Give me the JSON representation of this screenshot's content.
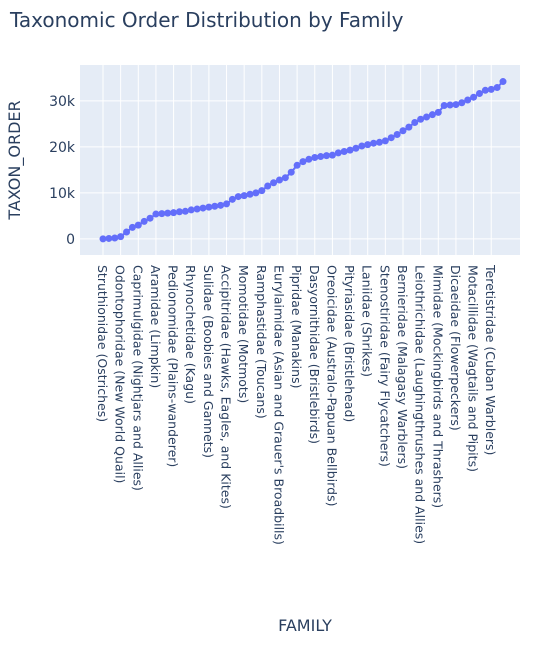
{
  "chart_data": {
    "type": "line",
    "title": "Taxonomic Order Distribution by Family",
    "x_label": "FAMILY",
    "y_label": "TAXON_ORDER",
    "categories": [
      "Struthionidae (Ostriches)",
      null,
      null,
      "Odontophoridae (New World Quail)",
      null,
      null,
      "Caprimulgidae (Nightjars and Allies)",
      null,
      null,
      "Aramidae (Limpkin)",
      null,
      null,
      "Pedionomidae (Plains-wanderer)",
      null,
      null,
      "Rhynochetidae (Kagu)",
      null,
      null,
      "Sulidae (Boobies and Gannets)",
      null,
      null,
      "Accipitridae (Hawks, Eagles, and Kites)",
      null,
      null,
      "Momotidae (Motmots)",
      null,
      null,
      "Ramphastidae (Toucans)",
      null,
      null,
      "Eurylaimidae (Asian and Grauer's Broadbills)",
      null,
      null,
      "Pipridae (Manakins)",
      null,
      null,
      "Dasyornithidae (Bristlebirds)",
      null,
      null,
      "Oreoicidae (Australo-Papuan Bellbirds)",
      null,
      null,
      "Pityriasidae (Bristlehead)",
      null,
      null,
      "Laniidae (Shrikes)",
      null,
      null,
      "Stenostiridae (Fairy Flycatchers)",
      null,
      null,
      "Bernieridae (Malagasy Warblers)",
      null,
      null,
      "Leiothrichidae (Laughingthrushes and Allies)",
      null,
      null,
      "Mimidae (Mockingbirds and Thrashers)",
      null,
      null,
      "Dicaeidae (Flowerpeckers)",
      null,
      null,
      "Motacillidae (Wagtails and Pipits)",
      null,
      null,
      "Teretistridae (Cuban Warblers)",
      null,
      null
    ],
    "series": [
      {
        "name": "TAXON_ORDER",
        "color": "#636efa",
        "values": [
          0,
          100,
          200,
          500,
          1500,
          2500,
          3000,
          3800,
          4500,
          5400,
          5500,
          5600,
          5700,
          5900,
          6000,
          6300,
          6500,
          6700,
          6900,
          7100,
          7300,
          7600,
          8600,
          9200,
          9400,
          9700,
          10000,
          10500,
          11500,
          12200,
          12800,
          13300,
          14500,
          16000,
          16800,
          17300,
          17700,
          17900,
          18100,
          18200,
          18700,
          19000,
          19300,
          19700,
          20200,
          20500,
          20800,
          21000,
          21300,
          22000,
          22700,
          23500,
          24300,
          25300,
          26000,
          26500,
          27000,
          27500,
          29000,
          29100,
          29200,
          29600,
          30200,
          30800,
          31600,
          32300,
          32500,
          32900,
          34200
        ]
      }
    ],
    "ylim": [
      -3500,
      37800
    ],
    "yticks": [
      0,
      {
        "value": 10000,
        "label": "10k"
      },
      {
        "value": 20000,
        "label": "20k"
      },
      {
        "value": 30000,
        "label": "30k"
      }
    ],
    "grid": true
  }
}
